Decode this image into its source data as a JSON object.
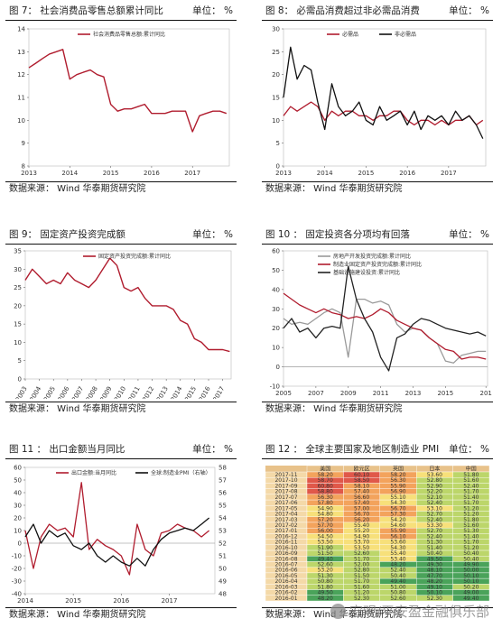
{
  "panels": [
    {
      "title": "图 7： 社会消费品零售总额累计同比",
      "unit": "单位： %",
      "source": "数据来源： Wind   华泰期货研究院",
      "chart_data": {
        "type": "line",
        "x": [
          2013.0,
          2013.17,
          2013.33,
          2013.5,
          2013.67,
          2013.83,
          2014.0,
          2014.17,
          2014.33,
          2014.5,
          2014.67,
          2014.83,
          2015.0,
          2015.17,
          2015.33,
          2015.5,
          2015.67,
          2015.83,
          2016.0,
          2016.17,
          2016.33,
          2016.5,
          2016.67,
          2016.83,
          2017.0,
          2017.17,
          2017.33,
          2017.5,
          2017.67,
          2017.83
        ],
        "series": [
          {
            "name": "社会消费品零售总额:累计同比",
            "color": "#b01c2e",
            "values": [
              12.3,
              12.5,
              12.7,
              12.9,
              13.0,
              13.1,
              11.8,
              12.0,
              12.1,
              12.2,
              12.0,
              11.9,
              10.7,
              10.4,
              10.5,
              10.5,
              10.6,
              10.7,
              10.3,
              10.3,
              10.3,
              10.4,
              10.4,
              10.4,
              9.5,
              10.2,
              10.3,
              10.4,
              10.4,
              10.3
            ]
          }
        ],
        "ylim": [
          8,
          14
        ],
        "yticks": [
          "8",
          "9",
          "10",
          "11",
          "12",
          "13",
          "14"
        ],
        "xticks": [
          "2013",
          "2014",
          "2015",
          "2016",
          "2017"
        ],
        "xlim": [
          2013,
          2017.9
        ]
      }
    },
    {
      "title": "图 8： 必需品消费超过非必需品消费",
      "unit": "单位： %",
      "source": "数据来源： Wind   华泰期货研究院",
      "chart_data": {
        "type": "line",
        "x": [
          2013.0,
          2013.17,
          2013.33,
          2013.5,
          2013.67,
          2013.83,
          2014.0,
          2014.17,
          2014.33,
          2014.5,
          2014.67,
          2014.83,
          2015.0,
          2015.17,
          2015.33,
          2015.5,
          2015.67,
          2015.83,
          2016.0,
          2016.17,
          2016.33,
          2016.5,
          2016.67,
          2016.83,
          2017.0,
          2017.17,
          2017.33,
          2017.5,
          2017.67,
          2017.83
        ],
        "series": [
          {
            "name": "必需品",
            "color": "#b01c2e",
            "values": [
              11,
              13,
              12,
              13,
              14,
              13,
              10,
              12,
              11,
              12,
              12,
              11,
              11,
              10,
              11,
              11,
              12,
              12,
              10,
              9,
              10,
              10,
              9,
              10,
              9,
              10,
              10,
              11,
              9,
              10
            ]
          },
          {
            "name": "非必需品",
            "color": "#111111",
            "values": [
              15,
              26,
              19,
              22,
              21,
              14,
              8,
              18,
              13,
              11,
              12,
              14,
              10,
              9,
              13,
              10,
              11,
              12,
              9,
              12,
              8,
              11,
              10,
              11,
              9,
              12,
              10,
              11,
              9,
              6
            ]
          }
        ],
        "ylim": [
          0,
          30
        ],
        "yticks": [
          "0",
          "5",
          "10",
          "15",
          "20",
          "25",
          "30"
        ],
        "xticks": [
          "2013",
          "2014",
          "2015",
          "2016",
          "2017"
        ],
        "xlim": [
          2013,
          2017.9
        ]
      }
    },
    {
      "title": "图 9： 固定资产投资完成额",
      "unit": "单位： %",
      "source": "数据来源： Wind   华泰期货研究院",
      "chart_data": {
        "type": "line",
        "x": [
          2003,
          2003.5,
          2004,
          2004.5,
          2005,
          2005.5,
          2006,
          2006.5,
          2007,
          2007.5,
          2008,
          2008.5,
          2009,
          2009.5,
          2010,
          2010.5,
          2011,
          2011.5,
          2012,
          2012.5,
          2013,
          2013.5,
          2014,
          2014.5,
          2015,
          2015.5,
          2016,
          2016.5,
          2017,
          2017.5
        ],
        "series": [
          {
            "name": "固定资产投资完成额:累计同比",
            "color": "#b01c2e",
            "values": [
              27,
              30,
              28,
              26,
              27,
              26,
              29,
              27,
              26,
              25,
              27,
              30,
              33,
              31,
              25,
              24,
              25,
              22,
              20,
              20,
              20,
              19,
              16,
              15,
              11,
              10,
              8,
              8,
              8,
              7.5
            ]
          }
        ],
        "ylim": [
          0,
          35
        ],
        "yticks": [
          "0",
          "5",
          "10",
          "15",
          "20",
          "25",
          "30",
          "35"
        ],
        "xticks": [
          "2003",
          "2004",
          "2005",
          "2006",
          "2007",
          "2008",
          "2009",
          "2010",
          "2011",
          "2012",
          "2013",
          "2014",
          "2015",
          "2016",
          "2017"
        ],
        "xlim": [
          2003,
          2017.6
        ]
      }
    },
    {
      "title": "图 10 ： 固定投资各分项均有回落",
      "unit": "单位： %",
      "source": "数据来源： Wind   华泰期货研究院",
      "chart_data": {
        "type": "line",
        "x": [
          2005,
          2005.5,
          2006,
          2006.5,
          2007,
          2007.5,
          2008,
          2008.5,
          2009,
          2009.5,
          2010,
          2010.5,
          2011,
          2011.5,
          2012,
          2012.5,
          2013,
          2013.5,
          2014,
          2014.5,
          2015,
          2015.5,
          2016,
          2016.5,
          2017,
          2017.5
        ],
        "series": [
          {
            "name": "房地产开发投资完成额:累计同比",
            "color": "#9a9a9a",
            "values": [
              25,
              22,
              23,
              22,
              25,
              28,
              30,
              28,
              5,
              35,
              35,
              33,
              34,
              32,
              22,
              18,
              20,
              19,
              15,
              12,
              3,
              2,
              6,
              7,
              8,
              8
            ]
          },
          {
            "name": "制造业固定资产投资完成额:累计同比",
            "color": "#b01c2e",
            "values": [
              38,
              35,
              32,
              30,
              28,
              30,
              28,
              27,
              25,
              26,
              25,
              27,
              30,
              28,
              24,
              22,
              20,
              19,
              15,
              12,
              9,
              8,
              4,
              5,
              5,
              4
            ]
          },
          {
            "name": "基础设施建设投资:累计同比",
            "color": "#222222",
            "values": [
              20,
              25,
              18,
              20,
              15,
              20,
              21,
              20,
              52,
              35,
              25,
              18,
              5,
              -2,
              15,
              17,
              22,
              25,
              24,
              22,
              20,
              19,
              18,
              17,
              18,
              16
            ]
          }
        ],
        "ylim": [
          -10,
          60
        ],
        "yticks": [
          "-10",
          "0",
          "10",
          "20",
          "30",
          "40",
          "50",
          "60"
        ],
        "xticks": [
          "2005",
          "2007",
          "2009",
          "2011",
          "2013",
          "2015",
          "201"
        ],
        "xlim": [
          2005,
          2017.6
        ]
      }
    },
    {
      "title": "图 11 ： 出口金额当月同比",
      "unit": "单位： %",
      "source": "数据来源： Wind   华泰期货研究院",
      "chart_data": {
        "type": "line",
        "x": [
          2014.0,
          2014.17,
          2014.33,
          2014.5,
          2014.67,
          2014.83,
          2015.0,
          2015.17,
          2015.33,
          2015.5,
          2015.67,
          2015.83,
          2016.0,
          2016.17,
          2016.33,
          2016.5,
          2016.67,
          2016.83,
          2017.0,
          2017.17,
          2017.33,
          2017.5,
          2017.67,
          2017.83
        ],
        "series": [
          {
            "name": "出口金额:当月同比",
            "color": "#b01c2e",
            "axis": "left",
            "values": [
              10,
              -20,
              5,
              15,
              10,
              12,
              5,
              48,
              -5,
              3,
              -2,
              -5,
              -10,
              -25,
              15,
              -5,
              -10,
              8,
              10,
              15,
              12,
              10,
              5,
              10
            ]
          },
          {
            "name": "全球:制造业PMI（右轴）",
            "color": "#111111",
            "axis": "right",
            "values": [
              52.5,
              53.5,
              52,
              53,
              52.5,
              52.8,
              51.8,
              51.5,
              52,
              51,
              50.5,
              51,
              50.5,
              50.2,
              50.8,
              50.2,
              51.5,
              52.3,
              52.8,
              53,
              53.2,
              53,
              53.5,
              54
            ]
          }
        ],
        "ylim": [
          -40,
          60
        ],
        "yticks": [
          "-40",
          "-30",
          "-20",
          "-10",
          "0",
          "10",
          "20",
          "30",
          "40",
          "50",
          "60"
        ],
        "y2lim": [
          48,
          58
        ],
        "y2ticks": [
          "48",
          "49",
          "50",
          "51",
          "52",
          "53",
          "54",
          "55",
          "56",
          "57",
          "58"
        ],
        "xticks": [
          "2014",
          "2015",
          "2016",
          "2017"
        ],
        "xlim": [
          2014,
          2017.95
        ]
      }
    },
    {
      "title": "图 12 ： 全球主要国家及地区制造业 PMI",
      "unit": "单位： %",
      "source": "数据来源： Wind   华泰期货研究院",
      "chart_data": {
        "type": "heatmap",
        "columns": [
          "美国",
          "欧元区",
          "英国",
          "日本",
          "中国"
        ],
        "rows": [
          "2017-11",
          "2017-10",
          "2017-09",
          "2017-08",
          "2017-07",
          "2017-06",
          "2017-05",
          "2017-04",
          "2017-03",
          "2017-02",
          "2017-01",
          "2016-12",
          "2016-11",
          "2016-10",
          "2016-09",
          "2016-08",
          "2016-07",
          "2016-06",
          "2016-05",
          "2016-04",
          "2016-03",
          "2016-02",
          "2016-01"
        ],
        "values": [
          [
            58.2,
            60.1,
            58.2,
            53.6,
            51.8
          ],
          [
            58.7,
            58.5,
            56.3,
            52.8,
            51.6
          ],
          [
            60.8,
            58.1,
            55.9,
            52.9,
            52.4
          ],
          [
            58.8,
            57.4,
            56.9,
            52.2,
            51.7
          ],
          [
            56.3,
            56.6,
            55.1,
            52.1,
            51.4
          ],
          [
            57.8,
            57.4,
            54.3,
            52.4,
            51.7
          ],
          [
            54.9,
            57.0,
            56.7,
            53.1,
            51.2
          ],
          [
            54.8,
            56.7,
            57.3,
            52.7,
            51.2
          ],
          [
            57.2,
            56.2,
            54.2,
            52.4,
            51.8
          ],
          [
            57.7,
            55.4,
            54.6,
            53.3,
            51.6
          ],
          [
            56.0,
            55.2,
            55.9,
            52.7,
            51.3
          ],
          [
            54.5,
            54.9,
            56.1,
            52.4,
            51.4
          ],
          [
            53.5,
            53.7,
            53.6,
            51.3,
            51.7
          ],
          [
            51.9,
            53.5,
            54.3,
            51.4,
            51.2
          ],
          [
            51.5,
            52.6,
            55.4,
            50.4,
            50.4
          ],
          [
            49.4,
            51.7,
            53.4,
            49.5,
            50.4
          ],
          [
            52.6,
            52.0,
            48.2,
            49.3,
            49.9
          ],
          [
            53.2,
            52.8,
            52.4,
            48.1,
            50.0
          ],
          [
            51.3,
            51.5,
            50.4,
            47.7,
            50.1
          ],
          [
            50.8,
            51.7,
            49.4,
            48.2,
            50.1
          ],
          [
            51.8,
            51.6,
            51.0,
            49.1,
            50.2
          ],
          [
            49.5,
            51.2,
            50.8,
            50.1,
            49.0
          ],
          [
            48.2,
            52.3,
            52.6,
            52.3,
            49.4
          ]
        ],
        "colormap": [
          "#4aa35a",
          "#bcd66a",
          "#f7e07a",
          "#f3a35c",
          "#e0584a"
        ]
      }
    }
  ],
  "watermark": {
    "text": "宏观/平安盈金融俱乐部"
  }
}
